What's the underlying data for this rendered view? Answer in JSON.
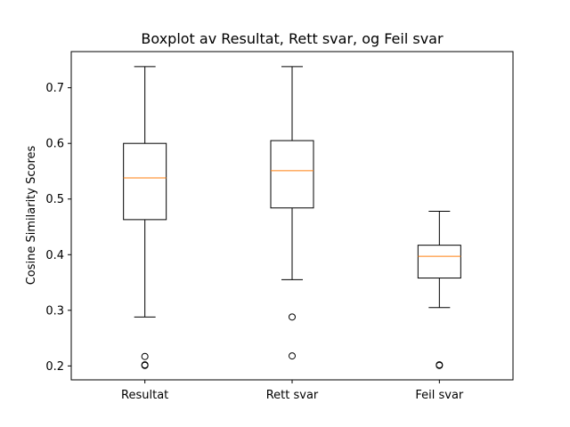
{
  "chart_data": {
    "type": "box",
    "title": "Boxplot av Resultat, Rett svar, og Feil svar",
    "xlabel": "",
    "ylabel": "Cosine Similarity Scores",
    "ylim": [
      0.175,
      0.765
    ],
    "yticks": [
      0.2,
      0.3,
      0.4,
      0.5,
      0.6,
      0.7
    ],
    "ytick_labels": [
      "0.2",
      "0.3",
      "0.4",
      "0.5",
      "0.6",
      "0.7"
    ],
    "grid": false,
    "categories": [
      "Resultat",
      "Rett svar",
      "Feil svar"
    ],
    "boxes": [
      {
        "name": "Resultat",
        "whisker_low": 0.288,
        "q1": 0.463,
        "median": 0.538,
        "q3": 0.6,
        "whisker_high": 0.738,
        "outliers": [
          0.217,
          0.202,
          0.201
        ]
      },
      {
        "name": "Rett svar",
        "whisker_low": 0.355,
        "q1": 0.484,
        "median": 0.551,
        "q3": 0.605,
        "whisker_high": 0.738,
        "outliers": [
          0.288,
          0.218
        ]
      },
      {
        "name": "Feil svar",
        "whisker_low": 0.305,
        "q1": 0.358,
        "median": 0.397,
        "q3": 0.417,
        "whisker_high": 0.478,
        "outliers": [
          0.202,
          0.201
        ]
      }
    ],
    "colors": {
      "box": "#000000",
      "median": "#ff7f0e",
      "background": "#ffffff"
    }
  }
}
